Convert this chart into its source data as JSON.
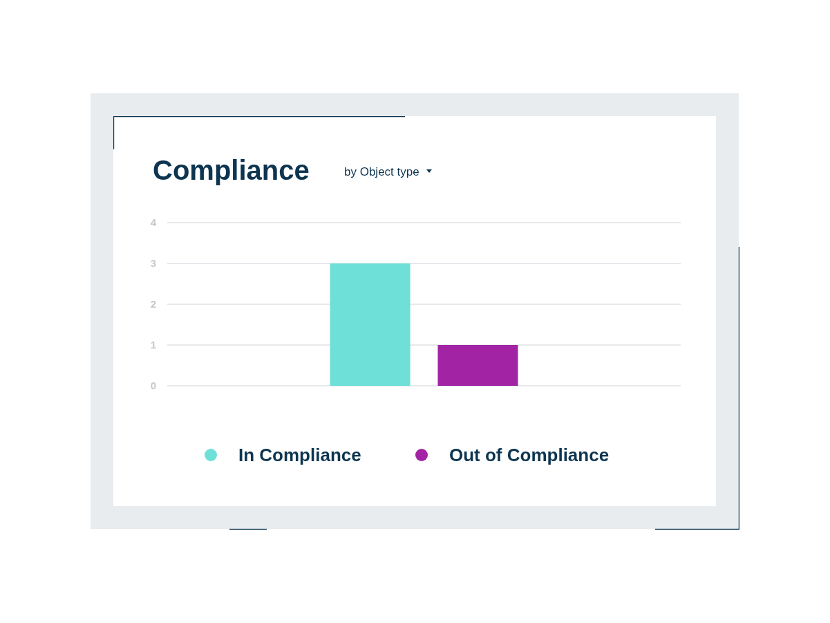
{
  "chart_data": {
    "type": "bar",
    "title": "Compliance",
    "subtitle": "by Object type",
    "categories": [
      null
    ],
    "series": [
      {
        "name": "In Compliance",
        "color": "#6ee0d8",
        "values": [
          3
        ]
      },
      {
        "name": "Out of Compliance",
        "color": "#a224a4",
        "values": [
          1
        ]
      }
    ],
    "ylim": [
      0,
      4
    ],
    "yticks": [
      0,
      1,
      2,
      3,
      4
    ],
    "grid": "y",
    "legend": "bottom"
  }
}
